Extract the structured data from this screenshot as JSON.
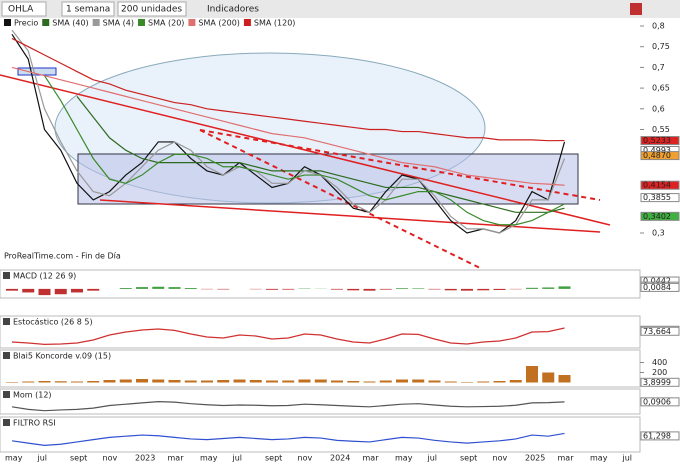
{
  "toolbar": {
    "symbol": "OHLA",
    "period": "1 semana",
    "units": "200 unidades",
    "indicators": "Indicadores"
  },
  "source": "ProRealTime.com - Fin de Día",
  "time_axis": [
    "may",
    "jul",
    "sept",
    "nov",
    "2023",
    "mar",
    "may",
    "jul",
    "sept",
    "nov",
    "2024",
    "mar",
    "may",
    "jul",
    "sept",
    "nov",
    "2025",
    "mar",
    "may",
    "jul"
  ],
  "chart_data": [
    {
      "type": "line",
      "ylim": [
        0.3,
        0.8
      ],
      "yticks": [
        {
          "value": 0.8,
          "label": "0,8"
        },
        {
          "value": 0.75,
          "label": "0,75"
        },
        {
          "value": 0.7,
          "label": "0,7"
        },
        {
          "value": 0.65,
          "label": "0,65"
        },
        {
          "value": 0.6,
          "label": "0,6"
        },
        {
          "value": 0.55,
          "label": "0,55"
        },
        {
          "value": 0.3,
          "label": "0,3"
        }
      ],
      "series": [
        {
          "name": "Precio",
          "color": "#111111",
          "values": [
            0.78,
            0.72,
            0.55,
            0.5,
            0.42,
            0.38,
            0.4,
            0.44,
            0.47,
            0.52,
            0.52,
            0.48,
            0.45,
            0.44,
            0.47,
            0.44,
            0.41,
            0.42,
            0.46,
            0.44,
            0.4,
            0.36,
            0.35,
            0.4,
            0.44,
            0.43,
            0.38,
            0.33,
            0.3,
            0.31,
            0.3,
            0.33,
            0.4,
            0.38,
            0.52
          ]
        },
        {
          "name": "SMA (40)",
          "color": "#2e6b1f",
          "values": [
            null,
            null,
            null,
            null,
            0.63,
            0.58,
            0.53,
            0.5,
            0.48,
            0.47,
            0.47,
            0.47,
            0.47,
            0.47,
            0.47,
            0.46,
            0.45,
            0.45,
            0.45,
            0.45,
            0.44,
            0.43,
            0.42,
            0.41,
            0.41,
            0.41,
            0.4,
            0.39,
            0.38,
            0.37,
            0.36,
            0.35,
            0.35,
            0.35,
            0.36
          ]
        },
        {
          "name": "SMA (4)",
          "color": "#999999",
          "values": [
            0.79,
            0.74,
            0.6,
            0.52,
            0.45,
            0.4,
            0.39,
            0.42,
            0.46,
            0.5,
            0.52,
            0.5,
            0.46,
            0.44,
            0.46,
            0.45,
            0.42,
            0.42,
            0.45,
            0.44,
            0.41,
            0.37,
            0.35,
            0.38,
            0.43,
            0.43,
            0.39,
            0.34,
            0.31,
            0.31,
            0.3,
            0.32,
            0.38,
            0.38,
            0.48
          ]
        },
        {
          "name": "SMA (20)",
          "color": "#3a8a2a",
          "values": [
            null,
            null,
            0.68,
            0.62,
            0.55,
            0.48,
            0.43,
            0.42,
            0.44,
            0.47,
            0.49,
            0.49,
            0.48,
            0.46,
            0.46,
            0.45,
            0.44,
            0.43,
            0.44,
            0.44,
            0.43,
            0.41,
            0.39,
            0.38,
            0.39,
            0.4,
            0.4,
            0.38,
            0.35,
            0.33,
            0.32,
            0.32,
            0.33,
            0.35,
            0.37
          ]
        },
        {
          "name": "SMA (200)",
          "color": "#e07070",
          "values": [
            0.7,
            0.69,
            0.68,
            0.67,
            0.66,
            0.65,
            0.64,
            0.63,
            0.62,
            0.61,
            0.6,
            0.59,
            0.58,
            0.57,
            0.56,
            0.55,
            0.54,
            0.535,
            0.53,
            0.52,
            0.51,
            0.5,
            0.49,
            0.48,
            0.47,
            0.465,
            0.46,
            0.45,
            0.44,
            0.435,
            0.43,
            0.425,
            0.42,
            0.418,
            0.4154
          ]
        },
        {
          "name": "SMA (120)",
          "color": "#cc2020",
          "values": [
            0.77,
            0.75,
            0.73,
            0.71,
            0.69,
            0.67,
            0.66,
            0.645,
            0.635,
            0.625,
            0.615,
            0.61,
            0.6,
            0.595,
            0.59,
            0.585,
            0.58,
            0.575,
            0.57,
            0.565,
            0.56,
            0.555,
            0.55,
            0.55,
            0.545,
            0.545,
            0.54,
            0.535,
            0.53,
            0.53,
            0.525,
            0.525,
            0.525,
            0.523,
            0.5233
          ]
        }
      ],
      "value_badges": [
        {
          "value": 0.5233,
          "label": "0,5233",
          "color": "#dd2222"
        },
        {
          "value": 0.4993,
          "label": "0,4993",
          "color": "#ffffff"
        },
        {
          "value": 0.487,
          "label": "0,4870",
          "color": "#f0a030"
        },
        {
          "value": 0.4154,
          "label": "0,4154",
          "color": "#dd2222"
        },
        {
          "value": 0.3855,
          "label": "0,3855",
          "color": "#ffffff"
        },
        {
          "value": 0.3402,
          "label": "0,3402",
          "color": "#40b040"
        }
      ]
    },
    {
      "type": "bar",
      "title": "MACD (12 26 9)",
      "ylim": [
        -0.04,
        0.05
      ],
      "color": "#40a040",
      "neg_color": "#c03030",
      "values": [
        -0.01,
        -0.02,
        -0.035,
        -0.03,
        -0.02,
        -0.01,
        0.0,
        0.005,
        0.01,
        0.012,
        0.01,
        0.005,
        -0.002,
        -0.003,
        0.0,
        -0.002,
        -0.005,
        -0.004,
        0.002,
        0.001,
        -0.004,
        -0.008,
        -0.01,
        -0.004,
        0.004,
        0.003,
        -0.003,
        -0.008,
        -0.01,
        -0.008,
        -0.006,
        -0.002,
        0.006,
        0.008,
        0.014
      ],
      "value_badges": [
        {
          "value": 0.0442,
          "label": "0,0442",
          "color": "#ffffff"
        },
        {
          "value": 0.0156,
          "label": "0,0156",
          "color": "#ffffff"
        },
        {
          "value": 0.0084,
          "label": "0,0084",
          "color": "#ffffff"
        }
      ]
    },
    {
      "type": "line",
      "title": "Estocástico (26 8 5)",
      "ylim": [
        0,
        100
      ],
      "color": "#d03030",
      "values": [
        20,
        15,
        8,
        10,
        15,
        30,
        55,
        70,
        80,
        85,
        78,
        60,
        45,
        40,
        55,
        50,
        35,
        40,
        60,
        55,
        35,
        20,
        15,
        35,
        60,
        58,
        35,
        15,
        10,
        20,
        25,
        40,
        70,
        72,
        90
      ],
      "value_badges": [
        {
          "value": 78.693,
          "label": "78,693",
          "color": "#ffffff"
        },
        {
          "value": 73.664,
          "label": "73,664",
          "color": "#ffffff"
        }
      ]
    },
    {
      "type": "bar",
      "title": "Blai5 Koncorde v.09 (15)",
      "ylim": [
        -50,
        450
      ],
      "yticks": [
        200,
        400
      ],
      "color": "#c07020",
      "neg_color": "#c07020",
      "values": [
        10,
        20,
        30,
        25,
        20,
        30,
        50,
        60,
        70,
        60,
        50,
        40,
        40,
        50,
        60,
        50,
        40,
        40,
        60,
        60,
        40,
        30,
        20,
        40,
        60,
        60,
        40,
        20,
        10,
        20,
        30,
        50,
        330,
        200,
        150
      ],
      "value_badges": [
        {
          "value": 3.8999,
          "label": "3,8999",
          "color": "#ffffff"
        }
      ]
    },
    {
      "type": "line",
      "title": "Mom (12)",
      "ylim": [
        -0.3,
        0.2
      ],
      "color": "#555555",
      "values": [
        -0.1,
        -0.2,
        -0.25,
        -0.22,
        -0.2,
        -0.15,
        -0.05,
        0.0,
        0.05,
        0.1,
        0.08,
        0.02,
        -0.02,
        -0.05,
        -0.03,
        -0.04,
        -0.06,
        -0.05,
        0.0,
        -0.02,
        -0.05,
        -0.08,
        -0.1,
        -0.05,
        0.0,
        0.02,
        -0.03,
        -0.08,
        -0.1,
        -0.09,
        -0.08,
        -0.04,
        0.05,
        0.06,
        0.09
      ],
      "value_badges": [
        {
          "value": 0.0906,
          "label": "0,0906",
          "color": "#ffffff"
        }
      ]
    },
    {
      "type": "line",
      "title": "FILTRO RSI",
      "ylim": [
        0,
        100
      ],
      "color": "#3050d0",
      "values": [
        40,
        30,
        20,
        25,
        35,
        45,
        55,
        60,
        65,
        62,
        55,
        48,
        45,
        50,
        55,
        50,
        45,
        48,
        55,
        52,
        42,
        38,
        35,
        45,
        55,
        52,
        42,
        35,
        30,
        35,
        40,
        48,
        65,
        60,
        72
      ],
      "value_badges": [
        {
          "value": 61.298,
          "label": "61,298",
          "color": "#ffffff"
        }
      ]
    }
  ]
}
